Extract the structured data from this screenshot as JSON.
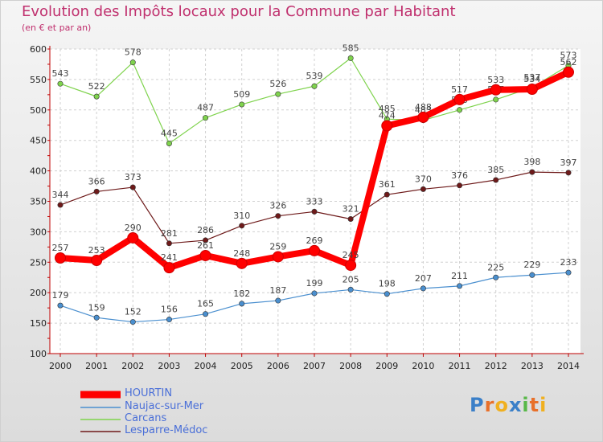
{
  "chart_data": {
    "type": "line",
    "title": "Evolution des Impôts locaux pour la Commune par Habitant",
    "subtitle": "(en € et par an)",
    "xlabel": "",
    "ylabel": "",
    "ylim": [
      100,
      600
    ],
    "yticks": [
      "100",
      "150",
      "200",
      "250",
      "300",
      "350",
      "400",
      "450",
      "500",
      "550",
      "600"
    ],
    "x": [
      "2000",
      "2001",
      "2002",
      "2003",
      "2004",
      "2005",
      "2006",
      "2007",
      "2008",
      "2009",
      "2010",
      "2011",
      "2012",
      "2013",
      "2014"
    ],
    "grid": true,
    "legend_position": "bottom-left",
    "series": [
      {
        "name": "HOURTIN",
        "color": "#ff0000",
        "values": [
          257,
          253,
          290,
          241,
          261,
          248,
          259,
          269,
          245,
          474,
          488,
          517,
          533,
          534,
          562
        ]
      },
      {
        "name": "Naujac-sur-Mer",
        "color": "#4a8fcf",
        "values": [
          179,
          159,
          152,
          156,
          165,
          182,
          187,
          199,
          205,
          198,
          207,
          211,
          225,
          229,
          233
        ]
      },
      {
        "name": "Carcans",
        "color": "#7fd34d",
        "values": [
          543,
          522,
          578,
          445,
          487,
          509,
          526,
          539,
          585,
          485,
          483,
          500,
          517,
          537,
          573
        ]
      },
      {
        "name": "Lesparre-Médoc",
        "color": "#6e1a1a",
        "values": [
          344,
          366,
          373,
          281,
          286,
          310,
          326,
          333,
          321,
          361,
          370,
          376,
          385,
          398,
          397
        ]
      }
    ]
  },
  "logo": {
    "letters": [
      "P",
      "r",
      "o",
      "x",
      "i",
      "t",
      "i"
    ],
    "colors": [
      "#3a7fc8",
      "#e8702a",
      "#f0b020",
      "#3a7fc8",
      "#58b848",
      "#e8702a",
      "#f0b020"
    ]
  }
}
